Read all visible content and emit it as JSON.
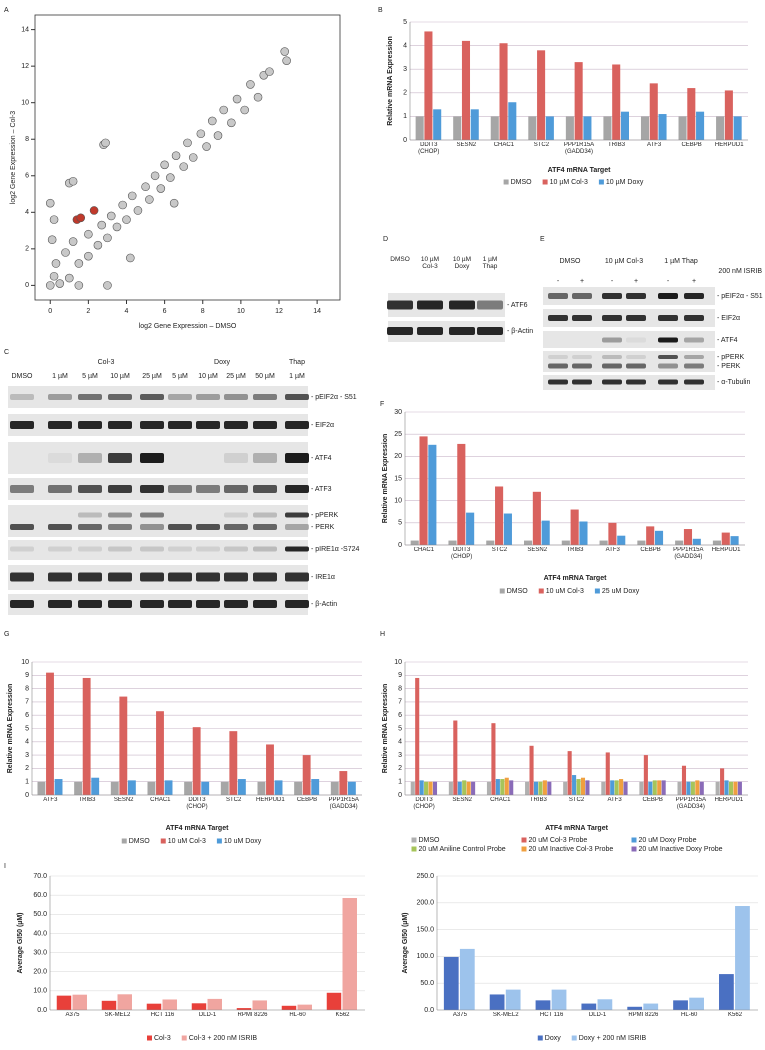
{
  "panel_labels": [
    "A",
    "B",
    "C",
    "D",
    "E",
    "F",
    "G",
    "H",
    "I"
  ],
  "chart_data": [
    {
      "type": "scatter",
      "xlabel": "log2 Gene Expression – DMSO",
      "ylabel": "log2 Gene Expression – Col-3",
      "xlim": [
        -0.8,
        15.2
      ],
      "ylim": [
        -0.8,
        14.8
      ],
      "xticks": [
        0,
        2,
        4,
        6,
        8,
        10,
        12,
        14
      ],
      "yticks": [
        0,
        2,
        4,
        6,
        8,
        10,
        12,
        14
      ],
      "series": [
        {
          "color": "#c8c8c8",
          "x": [
            0,
            0.2,
            0.5,
            0.3,
            1,
            0.8,
            1.5,
            1.2,
            2,
            2,
            2.5,
            2.7,
            3,
            3.2,
            3.5,
            3.8,
            4,
            4.3,
            4.6,
            5,
            5.2,
            5.5,
            5.8,
            6,
            6.3,
            6.6,
            7,
            7.2,
            7.5,
            7.9,
            8.2,
            8.5,
            8.8,
            9.1,
            9.5,
            9.8,
            10.2,
            10.5,
            10.9,
            11.2,
            11.5,
            12.3,
            12.4,
            0.1,
            0.2,
            0,
            1,
            1.2,
            2.8,
            2.9,
            4.2,
            6.5,
            1.5,
            3
          ],
          "values": [
            0,
            0.5,
            0.1,
            1.2,
            0.4,
            1.8,
            1.2,
            2.4,
            1.6,
            2.8,
            2.2,
            3.3,
            2.6,
            3.8,
            3.2,
            4.4,
            3.6,
            4.9,
            4.1,
            5.4,
            4.7,
            6,
            5.3,
            6.6,
            5.9,
            7.1,
            6.5,
            7.8,
            7,
            8.3,
            7.6,
            9,
            8.2,
            9.6,
            8.9,
            10.2,
            9.6,
            11,
            10.3,
            11.5,
            11.7,
            12.8,
            12.3,
            2.5,
            3.6,
            4.5,
            5.6,
            5.7,
            7.7,
            7.8,
            1.5,
            4.5,
            0,
            0
          ]
        },
        {
          "color": "#c0392b",
          "x": [
            1.4,
            1.6,
            2.3
          ],
          "values": [
            3.6,
            3.7,
            4.1
          ]
        }
      ]
    },
    {
      "type": "bar",
      "ylabel": "Relative mRNA Expression",
      "xlabel": "ATF4 mRNA Target",
      "ylim": [
        0,
        5
      ],
      "yticks": [
        0,
        1,
        2,
        3,
        4,
        5
      ],
      "grid": true,
      "categories": [
        "DDIT3 (CHOP)",
        "SESN2",
        "CHAC1",
        "STC2",
        "PPP1R15A (GADD34)",
        "TRIB3",
        "ATF3",
        "CEBPB",
        "HERPUD1"
      ],
      "series": [
        {
          "name": "DMSO",
          "color": "#a6a6a6",
          "values": [
            1,
            1,
            1,
            1,
            1,
            1,
            1,
            1,
            1
          ]
        },
        {
          "name": "10 µM Col-3",
          "color": "#d9625e",
          "values": [
            4.6,
            4.2,
            4.1,
            3.8,
            3.3,
            3.2,
            2.4,
            2.2,
            2.1
          ]
        },
        {
          "name": "10 µM Doxy",
          "color": "#4f9bd9",
          "values": [
            1.3,
            1.3,
            1.6,
            1.0,
            1.0,
            1.2,
            1.1,
            1.2,
            1.0
          ]
        }
      ]
    },
    {
      "type": "bar",
      "ylabel": "Relative mRNA Expression",
      "xlabel": "ATF4 mRNA Target",
      "ylim": [
        0,
        30
      ],
      "yticks": [
        0,
        5,
        10,
        15,
        20,
        25,
        30
      ],
      "grid": true,
      "categories": [
        "CHAC1",
        "DDIT3 (CHOP)",
        "STC2",
        "SESN2",
        "TRIB3",
        "ATF3",
        "CEBPB",
        "PPP1R15A (GADD34)",
        "HERPUD1"
      ],
      "series": [
        {
          "name": "DMSO",
          "color": "#a6a6a6",
          "values": [
            1,
            1,
            1,
            1,
            1,
            1,
            1,
            1,
            1
          ]
        },
        {
          "name": "10 uM Col-3",
          "color": "#d9625e",
          "values": [
            24.5,
            22.8,
            13.2,
            12,
            8,
            5,
            4.2,
            3.6,
            2.8
          ]
        },
        {
          "name": "25 uM Doxy",
          "color": "#4f9bd9",
          "values": [
            22.6,
            7.3,
            7.1,
            5.5,
            5.3,
            2.1,
            3.2,
            1.4,
            2.0
          ]
        }
      ]
    },
    {
      "type": "bar",
      "ylabel": "Relative mRNA Expression",
      "xlabel": "ATF4 mRNA Target",
      "ylim": [
        0,
        10
      ],
      "yticks": [
        0,
        1,
        2,
        3,
        4,
        5,
        6,
        7,
        8,
        9,
        10
      ],
      "grid": true,
      "categories": [
        "ATF3",
        "TRIB3",
        "SESN2",
        "CHAC1",
        "DDIT3 (CHOP)",
        "STC2",
        "HERPUD1",
        "CEBPB",
        "PPP1R15A (GADD34)"
      ],
      "series": [
        {
          "name": "DMSO",
          "color": "#a6a6a6",
          "values": [
            1,
            1,
            1,
            1,
            1,
            1,
            1,
            1,
            1
          ]
        },
        {
          "name": "10 uM Col-3",
          "color": "#d9625e",
          "values": [
            9.2,
            8.8,
            7.4,
            6.3,
            5.1,
            4.8,
            3.8,
            3.0,
            1.8
          ]
        },
        {
          "name": "10 uM Doxy",
          "color": "#4f9bd9",
          "values": [
            1.2,
            1.3,
            1.1,
            1.1,
            1.0,
            1.2,
            1.1,
            1.2,
            1.0
          ]
        }
      ]
    },
    {
      "type": "bar",
      "ylabel": "Relative mRNA Expression",
      "xlabel": "ATF4 mRNA Target",
      "ylim": [
        0,
        10
      ],
      "yticks": [
        0,
        1,
        2,
        3,
        4,
        5,
        6,
        7,
        8,
        9,
        10
      ],
      "grid": true,
      "categories": [
        "DDIT3 (CHOP)",
        "SESN2",
        "CHAC1",
        "TRIB3",
        "STC2",
        "ATF3",
        "CEBPB",
        "PPP1R15A (GADD34)",
        "HERPUD1"
      ],
      "series": [
        {
          "name": "DMSO",
          "color": "#b0b0b0",
          "values": [
            1,
            1,
            1,
            1,
            1,
            1,
            1,
            1,
            1
          ]
        },
        {
          "name": "20 uM Col-3 Probe",
          "color": "#d9625e",
          "values": [
            8.8,
            5.6,
            5.4,
            3.7,
            3.3,
            3.2,
            3.0,
            2.2,
            2.0
          ]
        },
        {
          "name": "20 uM Doxy Probe",
          "color": "#4f9bd9",
          "values": [
            1.1,
            1.0,
            1.2,
            1.0,
            1.5,
            1.1,
            1.0,
            1.0,
            1.1
          ]
        },
        {
          "name": "20 uM Aniline Control Probe",
          "color": "#a6c45a",
          "values": [
            1.0,
            1.1,
            1.2,
            1.0,
            1.2,
            1.1,
            1.1,
            1.0,
            1.0
          ]
        },
        {
          "name": "20 uM Inactive Col-3 Probe",
          "color": "#f0a040",
          "values": [
            1.0,
            1.0,
            1.3,
            1.1,
            1.3,
            1.2,
            1.1,
            1.1,
            1.0
          ]
        },
        {
          "name": "20 uM Inactive Doxy Probe",
          "color": "#8a6bb8",
          "values": [
            1.0,
            1.0,
            1.1,
            1.0,
            1.1,
            1.0,
            1.1,
            1.0,
            1.0
          ]
        }
      ]
    },
    {
      "type": "bar",
      "ylabel": "Average GI50 (µM)",
      "ylim": [
        0,
        70
      ],
      "grid": true,
      "yticks": [
        {
          "value": 0,
          "label": "0.0"
        },
        {
          "value": 10,
          "label": "10.0"
        },
        {
          "value": 20,
          "label": "20.0"
        },
        {
          "value": 30,
          "label": "30.0"
        },
        {
          "value": 40,
          "label": "40.0"
        },
        {
          "value": 50,
          "label": "50.0"
        },
        {
          "value": 60,
          "label": "60.0"
        },
        {
          "value": 70,
          "label": "70.0"
        }
      ],
      "categories": [
        "A375",
        "SK-MEL2",
        "HCT 116",
        "DLD-1",
        "RPMI 8226",
        "HL-60",
        "K562"
      ],
      "series": [
        {
          "name": "Col-3",
          "color": "#e8403a",
          "values": [
            7.5,
            4.8,
            3.3,
            3.5,
            1.0,
            2.2,
            9
          ]
        },
        {
          "name": "Col-3 + 200 nM ISRIB",
          "color": "#f0a5a0",
          "values": [
            8,
            8.2,
            5.5,
            5.8,
            5,
            2.8,
            58.5
          ]
        }
      ]
    },
    {
      "type": "bar",
      "ylabel": "Average GI50 (µM)",
      "ylim": [
        0,
        250
      ],
      "grid": true,
      "yticks": [
        {
          "value": 0,
          "label": "0.0"
        },
        {
          "value": 50,
          "label": "50.0"
        },
        {
          "value": 100,
          "label": "100.0"
        },
        {
          "value": 150,
          "label": "150.0"
        },
        {
          "value": 200,
          "label": "200.0"
        },
        {
          "value": 250,
          "label": "250.0"
        }
      ],
      "categories": [
        "A375",
        "SK-MEL2",
        "HCT 116",
        "DLD-1",
        "RPMI 8226",
        "HL-60",
        "K562"
      ],
      "series": [
        {
          "name": "Doxy",
          "color": "#4a70c2",
          "values": [
            99,
            29,
            18,
            12,
            6,
            18,
            67
          ]
        },
        {
          "name": "Doxy + 200 nM ISRIB",
          "color": "#9dc3ec",
          "values": [
            114,
            38,
            38,
            20,
            12,
            23,
            194
          ]
        }
      ]
    }
  ],
  "blots": [
    {
      "groups": [
        "Col-3",
        "Doxy",
        "Thap"
      ],
      "lanes": [
        "DMSO",
        "1 µM",
        "5 µM",
        "10 µM",
        "25 µM",
        "5 µM",
        "10 µM",
        "25 µM",
        "50 µM",
        "1 µM"
      ],
      "targets": [
        "- pEIF2α - S51",
        "- EIF2α",
        "- ATF4",
        "- ATF3",
        "- pPERK",
        "- PERK",
        "- pIRE1α -S724",
        "- IRE1α",
        "- β-Actin"
      ]
    },
    {
      "lanes": [
        "DMSO",
        "10 µM Col-3",
        "10 µM Doxy",
        "1 µM Thap"
      ],
      "targets": [
        "- ATF6",
        "- β-Actin"
      ]
    },
    {
      "groups": [
        "DMSO",
        "10 µM Col-3",
        "1 µM Thap"
      ],
      "treatment": "200 nM ISRIB",
      "lanes": [
        "-",
        "+",
        "-",
        "+",
        "-",
        "+"
      ],
      "targets": [
        "- pEIF2α - S51",
        "- EIF2α",
        "- ATF4",
        "- pPERK",
        "- PERK",
        "- α-Tubulin"
      ]
    }
  ]
}
